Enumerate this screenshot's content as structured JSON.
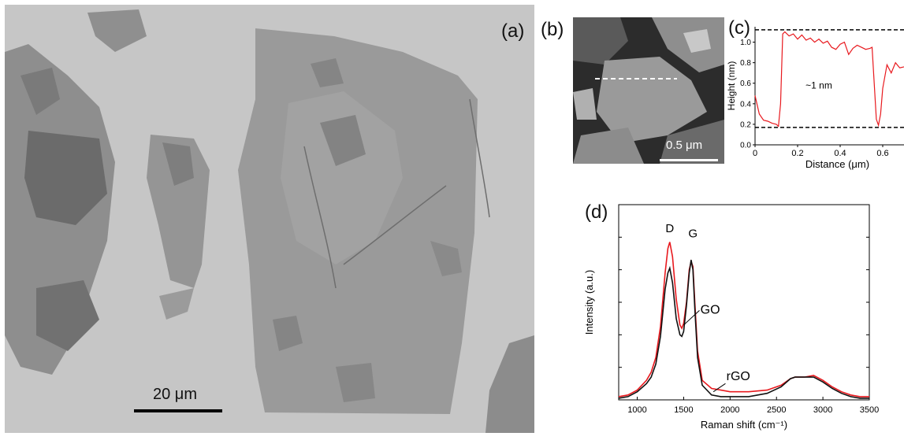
{
  "figure": {
    "panels": {
      "a": {
        "label": "(a)",
        "scalebar": "20 μm"
      },
      "b": {
        "label": "(b)",
        "scalebar": "0.5 μm"
      },
      "c": {
        "label": "(c)",
        "annotation": "~1 nm"
      },
      "d": {
        "label": "(d)",
        "peak_d": "D",
        "peak_g": "G",
        "go_label": "GO",
        "rgo_label": "rGO"
      }
    }
  },
  "chart_data": [
    {
      "type": "line",
      "panel": "c",
      "xlabel": "Distance (μm)",
      "ylabel": "Height (nm)",
      "xlim": [
        0,
        0.7
      ],
      "ylim": [
        0.0,
        1.15
      ],
      "xticks": [
        0,
        0.2,
        0.4,
        0.6
      ],
      "xtick_labels": [
        "0",
        "0.2",
        "0.4",
        "0.6"
      ],
      "yticks": [
        0.0,
        0.2,
        0.4,
        0.6,
        0.8,
        1.0
      ],
      "ytick_labels": [
        "0.0",
        "0.2",
        "0.4",
        "0.6",
        "0.8",
        "1.0"
      ],
      "reference_lines": [
        1.12,
        0.17
      ],
      "series": [
        {
          "color": "#e8191e",
          "x": [
            0.0,
            0.02,
            0.04,
            0.06,
            0.08,
            0.1,
            0.11,
            0.12,
            0.13,
            0.14,
            0.16,
            0.18,
            0.2,
            0.22,
            0.24,
            0.26,
            0.28,
            0.3,
            0.32,
            0.34,
            0.36,
            0.38,
            0.4,
            0.42,
            0.44,
            0.46,
            0.48,
            0.5,
            0.52,
            0.54,
            0.55,
            0.56,
            0.57,
            0.58,
            0.59,
            0.6,
            0.62,
            0.64,
            0.66,
            0.68,
            0.7
          ],
          "y": [
            0.48,
            0.3,
            0.24,
            0.23,
            0.21,
            0.2,
            0.18,
            0.4,
            1.08,
            1.1,
            1.06,
            1.08,
            1.03,
            1.07,
            1.02,
            1.04,
            1.0,
            1.03,
            0.99,
            1.01,
            0.95,
            0.93,
            0.98,
            1.0,
            0.88,
            0.94,
            0.97,
            0.95,
            0.93,
            0.94,
            0.95,
            0.6,
            0.25,
            0.19,
            0.3,
            0.55,
            0.78,
            0.7,
            0.8,
            0.75,
            0.76
          ]
        }
      ]
    },
    {
      "type": "line",
      "panel": "d",
      "xlabel": "Raman shift (cm⁻¹)",
      "ylabel": "Intensity (a.u.)",
      "xlim": [
        800,
        3500
      ],
      "ylim": [
        0,
        1.2
      ],
      "xticks": [
        1000,
        1500,
        2000,
        2500,
        3000,
        3500
      ],
      "xtick_labels": [
        "1000",
        "1500",
        "2000",
        "2500",
        "3000",
        "3500"
      ],
      "series": [
        {
          "name": "GO",
          "color": "#e8191e",
          "x": [
            800,
            900,
            1000,
            1100,
            1150,
            1200,
            1250,
            1300,
            1330,
            1350,
            1380,
            1420,
            1460,
            1480,
            1500,
            1530,
            1560,
            1580,
            1600,
            1620,
            1650,
            1700,
            1800,
            1900,
            2000,
            2200,
            2400,
            2550,
            2650,
            2700,
            2800,
            2900,
            3000,
            3100,
            3200,
            3300,
            3400,
            3500
          ],
          "y": [
            0.02,
            0.03,
            0.06,
            0.12,
            0.17,
            0.26,
            0.45,
            0.78,
            0.93,
            0.97,
            0.88,
            0.62,
            0.46,
            0.44,
            0.47,
            0.6,
            0.8,
            0.85,
            0.82,
            0.6,
            0.3,
            0.12,
            0.07,
            0.06,
            0.05,
            0.05,
            0.06,
            0.09,
            0.13,
            0.14,
            0.14,
            0.15,
            0.12,
            0.08,
            0.05,
            0.03,
            0.02,
            0.02
          ]
        },
        {
          "color": "#111111",
          "x": [
            800,
            900,
            1000,
            1100,
            1150,
            1200,
            1250,
            1300,
            1330,
            1350,
            1380,
            1420,
            1460,
            1480,
            1500,
            1530,
            1560,
            1580,
            1600,
            1620,
            1650,
            1700,
            1800,
            1900,
            2000,
            2200,
            2400,
            2550,
            2650,
            2700,
            2800,
            2900,
            3000,
            3100,
            3200,
            3300,
            3400,
            3500
          ],
          "y": [
            0.01,
            0.02,
            0.05,
            0.1,
            0.14,
            0.22,
            0.39,
            0.68,
            0.78,
            0.81,
            0.72,
            0.5,
            0.4,
            0.39,
            0.42,
            0.58,
            0.78,
            0.86,
            0.8,
            0.56,
            0.26,
            0.09,
            0.03,
            0.02,
            0.02,
            0.02,
            0.04,
            0.08,
            0.13,
            0.14,
            0.14,
            0.14,
            0.11,
            0.07,
            0.04,
            0.02,
            0.01,
            0.01
          ]
        }
      ]
    }
  ]
}
